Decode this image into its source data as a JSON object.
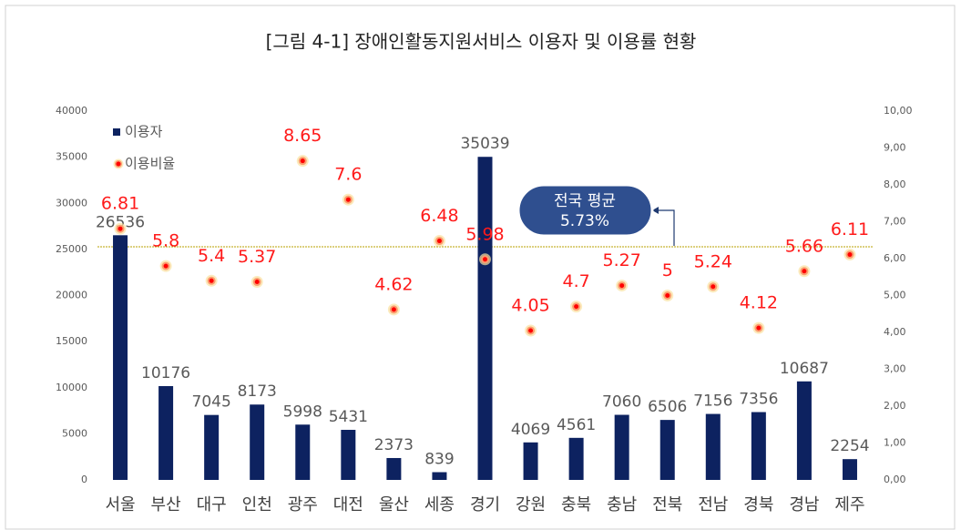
{
  "chart_data": {
    "type": "bar",
    "title": "[그림 4-1] 장애인활동지원서비스 이용자 및 이용률 현황",
    "categories": [
      "서울",
      "부산",
      "대구",
      "인천",
      "광주",
      "대전",
      "울산",
      "세종",
      "경기",
      "강원",
      "충북",
      "충남",
      "전북",
      "전남",
      "경북",
      "경남",
      "제주"
    ],
    "series": [
      {
        "name": "이용자",
        "type": "bar",
        "color": "#0d2260",
        "values": [
          26536,
          10176,
          7045,
          8173,
          5998,
          5431,
          2373,
          839,
          35039,
          4069,
          4561,
          7060,
          6506,
          7156,
          7356,
          10687,
          2254
        ]
      },
      {
        "name": "이용비율",
        "type": "scatter",
        "axis": "y2",
        "color": "#ff0000",
        "values": [
          6.81,
          5.8,
          5.4,
          5.37,
          8.65,
          7.6,
          4.62,
          6.48,
          5.98,
          4.05,
          4.7,
          5.27,
          5.0,
          5.24,
          4.12,
          5.66,
          6.11
        ]
      }
    ],
    "ylim": [
      0,
      40000
    ],
    "yticks": [
      0,
      5000,
      10000,
      15000,
      20000,
      25000,
      30000,
      35000,
      40000
    ],
    "y2lim": [
      0,
      10
    ],
    "y2ticks": [
      {
        "value": 0,
        "label": "0,00"
      },
      {
        "value": 1,
        "label": "1,00"
      },
      {
        "value": 2,
        "label": "2,00"
      },
      {
        "value": 3,
        "label": "3,00"
      },
      {
        "value": 4,
        "label": "4,00"
      },
      {
        "value": 5,
        "label": "5,00"
      },
      {
        "value": 6,
        "label": "6,00"
      },
      {
        "value": 7,
        "label": "7,00"
      },
      {
        "value": 8,
        "label": "8,00"
      },
      {
        "value": 9,
        "label": "9,00"
      },
      {
        "value": 10,
        "label": "10,00"
      }
    ],
    "legend": "upper left",
    "annotation": {
      "title": "전국 평균",
      "label": "5.73%"
    }
  }
}
